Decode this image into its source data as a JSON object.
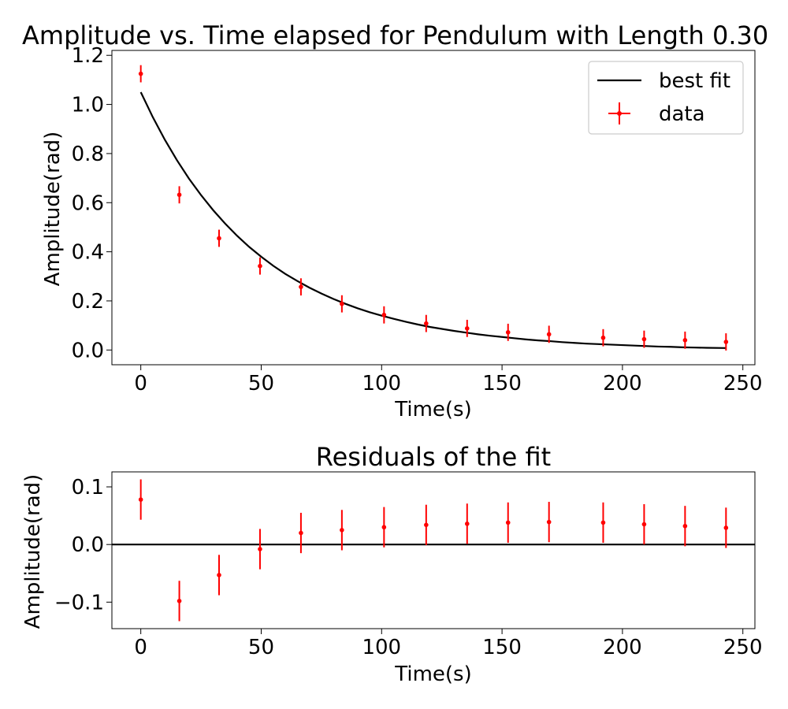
{
  "chart_data": [
    {
      "type": "line",
      "title": "Amplitude vs. Time elapsed for Pendulum with Length 0.30",
      "xlabel": "Time(s)",
      "ylabel": "Amplitude(rad)",
      "xlim": [
        -12,
        255
      ],
      "ylim": [
        -0.06,
        1.22
      ],
      "xticks": [
        0,
        50,
        100,
        150,
        200,
        250
      ],
      "xtick_labels": [
        "0",
        "50",
        "100",
        "150",
        "200",
        "250"
      ],
      "yticks": [
        0.0,
        0.2,
        0.4,
        0.6,
        0.8,
        1.0,
        1.2
      ],
      "ytick_labels": [
        "0.0",
        "0.2",
        "0.4",
        "0.6",
        "0.8",
        "1.0",
        "1.2"
      ],
      "legend": {
        "position": "top-right",
        "entries": [
          "best fit",
          "data"
        ]
      },
      "grid": false,
      "series": [
        {
          "name": "best fit",
          "kind": "line",
          "color": "#000000",
          "x": [
            0,
            5,
            10,
            15,
            20,
            25,
            30,
            35,
            40,
            45,
            50,
            55,
            60,
            65,
            70,
            75,
            80,
            85,
            90,
            95,
            100,
            105,
            110,
            115,
            120,
            125,
            130,
            135,
            140,
            145,
            150,
            155,
            160,
            165,
            170,
            175,
            180,
            185,
            190,
            195,
            200,
            205,
            210,
            215,
            220,
            225,
            230,
            235,
            243
          ],
          "y": [
            1.05,
            0.948,
            0.856,
            0.773,
            0.698,
            0.631,
            0.57,
            0.515,
            0.465,
            0.42,
            0.38,
            0.343,
            0.31,
            0.281,
            0.254,
            0.23,
            0.208,
            0.188,
            0.17,
            0.154,
            0.14,
            0.127,
            0.115,
            0.104,
            0.094,
            0.086,
            0.078,
            0.071,
            0.064,
            0.058,
            0.053,
            0.048,
            0.043,
            0.039,
            0.036,
            0.032,
            0.029,
            0.026,
            0.024,
            0.022,
            0.02,
            0.018,
            0.016,
            0.014,
            0.013,
            0.011,
            0.01,
            0.009,
            0.008
          ]
        },
        {
          "name": "data",
          "kind": "errorbar",
          "color": "#ff0000",
          "x": [
            0,
            16,
            32.5,
            49.5,
            66.5,
            83.5,
            101,
            118.5,
            135.5,
            152.5,
            169.5,
            192,
            209,
            226,
            243
          ],
          "y": [
            1.125,
            0.632,
            0.455,
            0.342,
            0.257,
            0.188,
            0.143,
            0.108,
            0.088,
            0.072,
            0.064,
            0.05,
            0.044,
            0.04,
            0.033
          ],
          "yerr": [
            0.035,
            0.035,
            0.035,
            0.035,
            0.035,
            0.035,
            0.035,
            0.035,
            0.035,
            0.035,
            0.035,
            0.035,
            0.035,
            0.035,
            0.035
          ]
        }
      ]
    },
    {
      "type": "scatter",
      "title": "Residuals of the fit",
      "xlabel": "Time(s)",
      "ylabel": "Amplitude(rad)",
      "xlim": [
        -12,
        255
      ],
      "ylim": [
        -0.146,
        0.126
      ],
      "xticks": [
        0,
        50,
        100,
        150,
        200,
        250
      ],
      "xtick_labels": [
        "0",
        "50",
        "100",
        "150",
        "200",
        "250"
      ],
      "yticks": [
        -0.1,
        0.0,
        0.1
      ],
      "ytick_labels": [
        "−0.1",
        "0.0",
        "0.1"
      ],
      "zero_line": 0.0,
      "grid": false,
      "series": [
        {
          "kind": "errorbar",
          "color": "#ff0000",
          "x": [
            0,
            16,
            32.5,
            49.5,
            66.5,
            83.5,
            101,
            118.5,
            135.5,
            152.5,
            169.5,
            192,
            209,
            226,
            243
          ],
          "y": [
            0.078,
            -0.098,
            -0.053,
            -0.008,
            0.02,
            0.025,
            0.03,
            0.034,
            0.036,
            0.038,
            0.039,
            0.038,
            0.035,
            0.032,
            0.029
          ],
          "yerr": [
            0.035,
            0.035,
            0.035,
            0.035,
            0.035,
            0.035,
            0.035,
            0.035,
            0.035,
            0.035,
            0.035,
            0.035,
            0.035,
            0.035,
            0.035
          ]
        }
      ]
    }
  ]
}
